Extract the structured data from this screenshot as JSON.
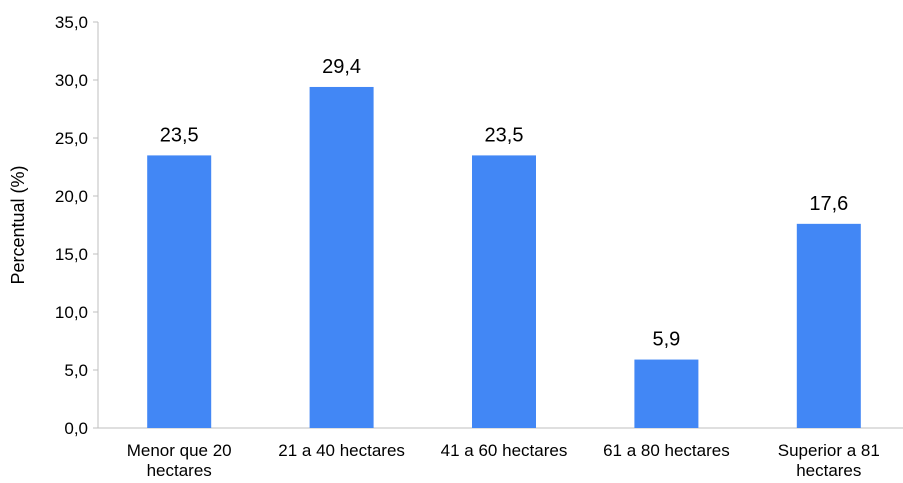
{
  "chart_data": {
    "type": "bar",
    "categories": [
      [
        "Menor que 20",
        "hectares"
      ],
      [
        "21 a 40 hectares"
      ],
      [
        "41 a 60 hectares"
      ],
      [
        "61 a 80 hectares"
      ],
      [
        "Superior a 81",
        "hectares"
      ]
    ],
    "values": [
      23.5,
      29.4,
      23.5,
      5.9,
      17.6
    ],
    "value_labels": [
      "23,5",
      "29,4",
      "23,5",
      "5,9",
      "17,6"
    ],
    "ylabel": "Percentual (%)",
    "ylim": [
      0,
      35
    ],
    "yticks": [
      "0,0",
      "5,0",
      "10,0",
      "15,0",
      "20,0",
      "25,0",
      "30,0",
      "35,0"
    ],
    "grid": false,
    "bar_color": "#4287f5"
  }
}
